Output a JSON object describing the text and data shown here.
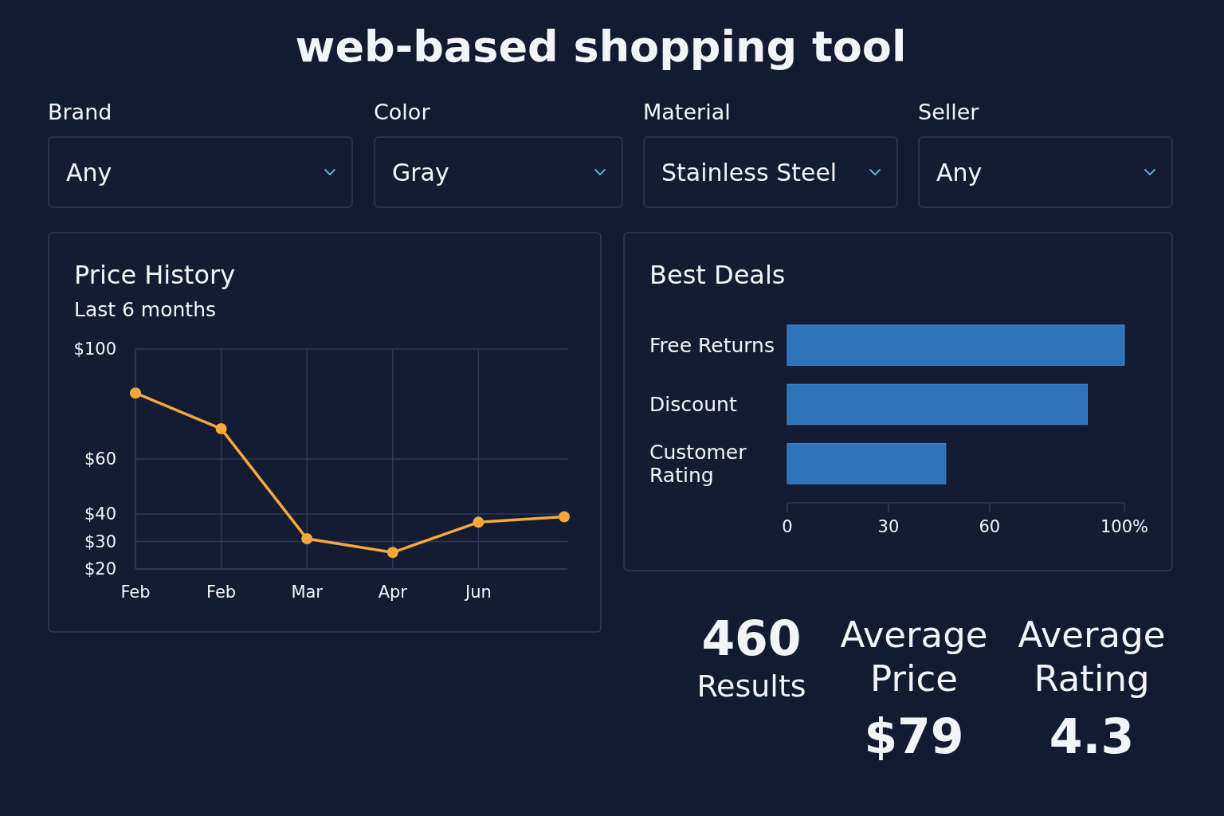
{
  "chart_data": [
    {
      "type": "other",
      "title": "web-based shopping tool",
      "annotations": [
        "Brand",
        "Any",
        "Color",
        "Gray",
        "Material",
        "Stainless Steel",
        "Seller",
        "Any"
      ]
    },
    {
      "type": "line",
      "title": "Price History",
      "subtitle": "Last 6 months",
      "categories": [
        "Feb",
        "Feb",
        "Mar",
        "Apr",
        "Jun",
        null
      ],
      "series": [
        {
          "color": "#f5a83c",
          "values": [
            84,
            71,
            31,
            26,
            37,
            39
          ]
        }
      ],
      "ylim": [
        20,
        100
      ],
      "yticks": [
        {
          "value": 20,
          "label": "$20"
        },
        {
          "value": 30,
          "label": "$30"
        },
        {
          "value": 40,
          "label": "$40"
        },
        {
          "value": 60,
          "label": "$60"
        },
        {
          "value": 100,
          "label": "$100"
        }
      ],
      "grid": true,
      "marker": "circle"
    },
    {
      "type": "bar",
      "title": "Best Deals",
      "orientation": "horizontal",
      "categories": [
        "Free Returns",
        "Discount",
        "Customer Rating"
      ],
      "values": [
        100,
        89,
        47
      ],
      "color": "#2e72b8",
      "xlim": [
        0,
        100
      ],
      "xticks": [
        0,
        30,
        60,
        {
          "value": 100,
          "label": "100%"
        }
      ]
    },
    {
      "type": "other",
      "annotations": [
        "460",
        "Results",
        "Average Price",
        "$79",
        "Average Rating",
        "4.3"
      ]
    }
  ]
}
